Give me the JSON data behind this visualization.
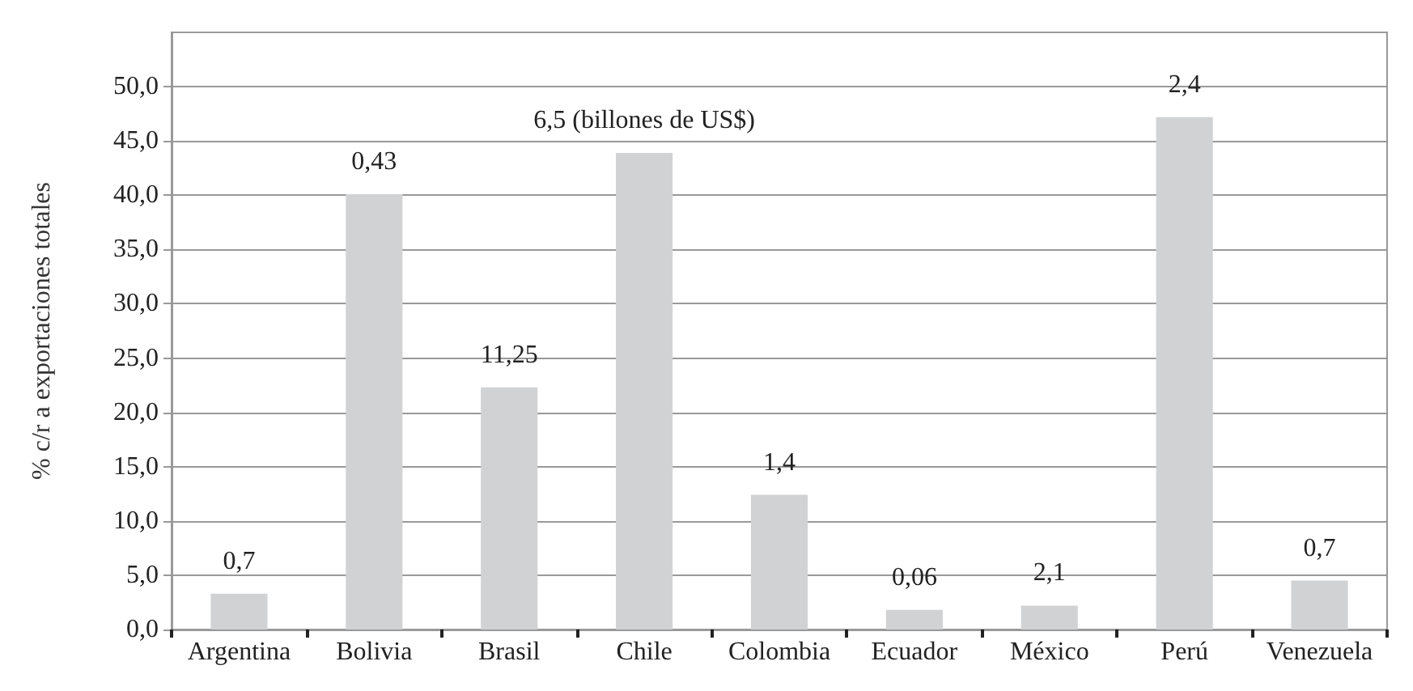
{
  "chart_data": {
    "type": "bar",
    "ylabel": "% c/r a exportaciones totales",
    "categories": [
      "Argentina",
      "Bolivia",
      "Brasil",
      "Chile",
      "Colombia",
      "Ecuador",
      "México",
      "Perú",
      "Venezuela"
    ],
    "values": [
      3.3,
      40.1,
      22.3,
      43.9,
      12.4,
      1.8,
      2.2,
      47.2,
      4.5
    ],
    "annotations": [
      {
        "text": "0,7",
        "x": "Argentina",
        "y": 3.3
      },
      {
        "text": "0,43",
        "x": "Bolivia",
        "y": 40.1
      },
      {
        "text": "11,25",
        "x": "Brasil",
        "y": 22.3
      },
      {
        "text": "6,5 (billones de US$)",
        "x": "Chile",
        "y": 43.9
      },
      {
        "text": "1,4",
        "x": "Colombia",
        "y": 12.4
      },
      {
        "text": "0,06",
        "x": "Ecuador",
        "y": 1.8
      },
      {
        "text": "2,1",
        "x": "México",
        "y": 2.2
      },
      {
        "text": "2,4",
        "x": "Perú",
        "y": 47.2
      },
      {
        "text": "0,7",
        "x": "Venezuela",
        "y": 4.5
      }
    ],
    "color": "#d1d2d4",
    "ylim": [
      0,
      55
    ],
    "yticks": [
      {
        "value": 0,
        "label": "0,0"
      },
      {
        "value": 5,
        "label": "5,0"
      },
      {
        "value": 10,
        "label": "10,0"
      },
      {
        "value": 15,
        "label": "15,0"
      },
      {
        "value": 20,
        "label": "20,0"
      },
      {
        "value": 25,
        "label": "25,0"
      },
      {
        "value": 30,
        "label": "30,0"
      },
      {
        "value": 35,
        "label": "35,0"
      },
      {
        "value": 40,
        "label": "40,0"
      },
      {
        "value": 45,
        "label": "45,0"
      },
      {
        "value": 50,
        "label": "50,0"
      }
    ],
    "grid": "y"
  }
}
